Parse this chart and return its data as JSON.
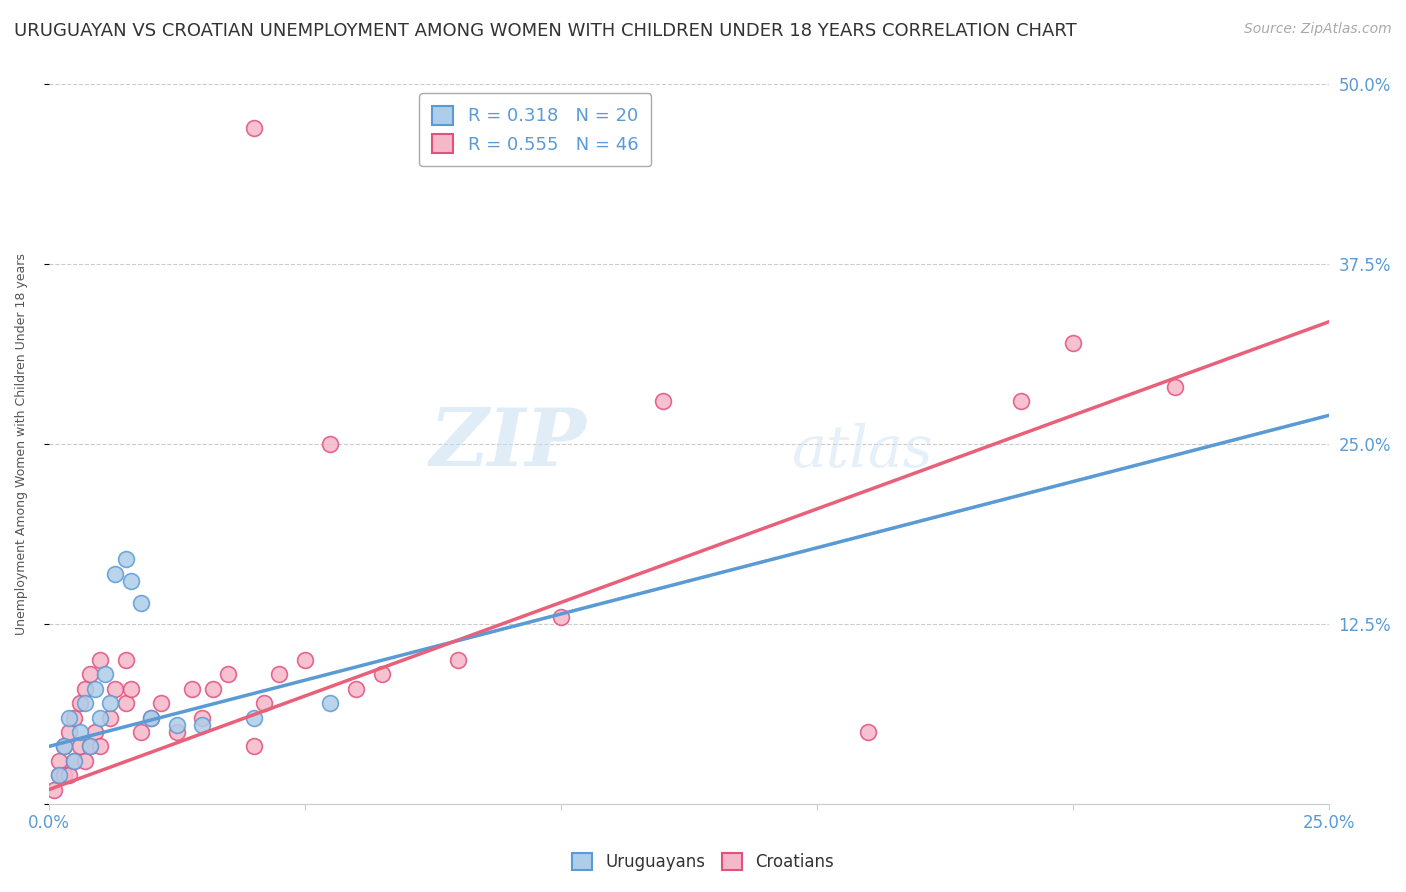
{
  "title": "URUGUAYAN VS CROATIAN UNEMPLOYMENT AMONG WOMEN WITH CHILDREN UNDER 18 YEARS CORRELATION CHART",
  "source": "Source: ZipAtlas.com",
  "ylabel": "Unemployment Among Women with Children Under 18 years",
  "x_min": 0.0,
  "x_max": 0.25,
  "y_min": 0.0,
  "y_max": 0.5,
  "y_ticks": [
    0.0,
    0.125,
    0.25,
    0.375,
    0.5
  ],
  "y_tick_labels": [
    "",
    "12.5%",
    "25.0%",
    "37.5%",
    "50.0%"
  ],
  "watermark_zip": "ZIP",
  "watermark_atlas": "atlas",
  "uruguayan_color": "#aecde8",
  "croatian_color": "#f5b8c8",
  "uruguayan_edge": "#5b9bd5",
  "croatian_edge": "#e05080",
  "uruguayan_line_color": "#5b9bd5",
  "croatian_line_color": "#e8607a",
  "legend_r_uruguayan": "R = 0.318",
  "legend_n_uruguayan": "N = 20",
  "legend_r_croatian": "R = 0.555",
  "legend_n_croatian": "N = 46",
  "uruguayan_x": [
    0.002,
    0.003,
    0.004,
    0.005,
    0.006,
    0.007,
    0.008,
    0.009,
    0.01,
    0.011,
    0.012,
    0.013,
    0.015,
    0.016,
    0.018,
    0.02,
    0.025,
    0.03,
    0.04,
    0.055
  ],
  "uruguayan_y": [
    0.02,
    0.04,
    0.06,
    0.03,
    0.05,
    0.07,
    0.04,
    0.08,
    0.06,
    0.09,
    0.07,
    0.16,
    0.17,
    0.155,
    0.14,
    0.06,
    0.055,
    0.055,
    0.06,
    0.07
  ],
  "croatian_x": [
    0.001,
    0.002,
    0.002,
    0.003,
    0.003,
    0.004,
    0.004,
    0.005,
    0.005,
    0.006,
    0.006,
    0.007,
    0.007,
    0.008,
    0.008,
    0.009,
    0.01,
    0.01,
    0.012,
    0.013,
    0.015,
    0.015,
    0.016,
    0.018,
    0.02,
    0.022,
    0.025,
    0.028,
    0.03,
    0.032,
    0.035,
    0.04,
    0.04,
    0.042,
    0.045,
    0.05,
    0.055,
    0.06,
    0.065,
    0.08,
    0.1,
    0.12,
    0.16,
    0.19,
    0.2,
    0.22
  ],
  "croatian_y": [
    0.01,
    0.02,
    0.03,
    0.02,
    0.04,
    0.02,
    0.05,
    0.03,
    0.06,
    0.04,
    0.07,
    0.03,
    0.08,
    0.04,
    0.09,
    0.05,
    0.04,
    0.1,
    0.06,
    0.08,
    0.07,
    0.1,
    0.08,
    0.05,
    0.06,
    0.07,
    0.05,
    0.08,
    0.06,
    0.08,
    0.09,
    0.04,
    0.47,
    0.07,
    0.09,
    0.1,
    0.25,
    0.08,
    0.09,
    0.1,
    0.13,
    0.28,
    0.05,
    0.28,
    0.32,
    0.29
  ],
  "uru_trend_x0": 0.0,
  "uru_trend_y0": 0.04,
  "uru_trend_x1": 0.25,
  "uru_trend_y1": 0.27,
  "cro_trend_x0": 0.0,
  "cro_trend_y0": 0.01,
  "cro_trend_x1": 0.25,
  "cro_trend_y1": 0.335,
  "background_color": "#ffffff",
  "grid_color": "#cccccc",
  "title_color": "#333333",
  "tick_color": "#5b9bd5",
  "title_fontsize": 13,
  "source_fontsize": 10,
  "axis_label_fontsize": 9
}
